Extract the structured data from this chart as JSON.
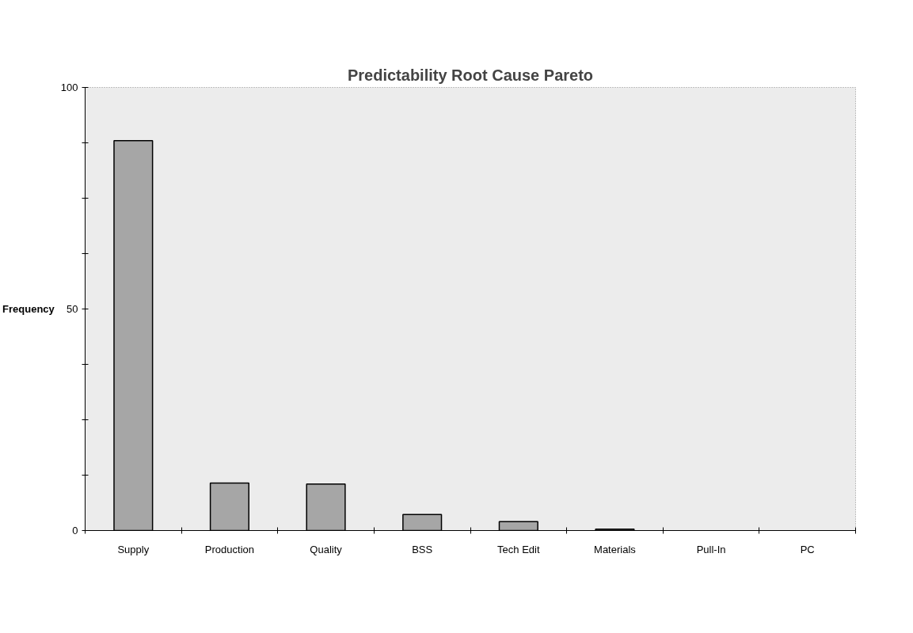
{
  "chart_data": {
    "type": "bar",
    "title": "Predictability Root Cause Pareto",
    "ylabel": "Frequency",
    "categories": [
      "Supply",
      "Production",
      "Quality",
      "BSS",
      "Tech Edit",
      "Materials",
      "Pull-In",
      "PC"
    ],
    "values": [
      88,
      10.7,
      10.5,
      3.6,
      2,
      0.3,
      0,
      0
    ],
    "color": "#a6a6a6",
    "ylim": [
      0,
      100
    ],
    "yticks": [
      0,
      {
        "value": 12.5,
        "label": null
      },
      {
        "value": 25,
        "label": null
      },
      {
        "value": 37.5,
        "label": null
      },
      50,
      {
        "value": 62.5,
        "label": null
      },
      {
        "value": 75,
        "label": null
      },
      {
        "value": 87.5,
        "label": null
      },
      100
    ],
    "grid": false
  }
}
